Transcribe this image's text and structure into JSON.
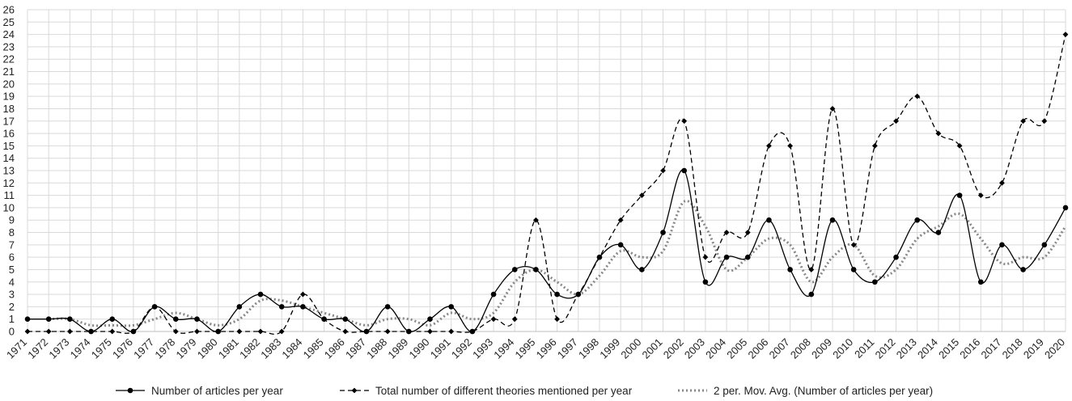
{
  "chart_data": {
    "type": "line",
    "x": [
      "1971",
      "1972",
      "1973",
      "1974",
      "1975",
      "1976",
      "1977",
      "1978",
      "1979",
      "1980",
      "1981",
      "1982",
      "1983",
      "1984",
      "1985",
      "1986",
      "1987",
      "1988",
      "1989",
      "1990",
      "1991",
      "1992",
      "1993",
      "1994",
      "1995",
      "1996",
      "1997",
      "1998",
      "1999",
      "2000",
      "2001",
      "2002",
      "2003",
      "2004",
      "2005",
      "2006",
      "2007",
      "2008",
      "2009",
      "2010",
      "2011",
      "2012",
      "2013",
      "2014",
      "2015",
      "2016",
      "2017",
      "2018",
      "2019",
      "2020"
    ],
    "ylim": [
      0,
      26
    ],
    "y_ticks": [
      "0",
      "1",
      "2",
      "3",
      "4",
      "5",
      "6",
      "7",
      "8",
      "9",
      "10",
      "11",
      "12",
      "13",
      "14",
      "15",
      "16",
      "17",
      "18",
      "19",
      "20",
      "21",
      "22",
      "23",
      "24",
      "25",
      "26"
    ],
    "grid": true,
    "legend_position": "bottom",
    "series": [
      {
        "name": "Number of articles per year",
        "style": "solid",
        "marker": "circle",
        "color": "#000000",
        "values": [
          1,
          1,
          1,
          0,
          1,
          0,
          2,
          1,
          1,
          0,
          2,
          3,
          2,
          2,
          1,
          1,
          0,
          2,
          0,
          1,
          2,
          0,
          3,
          5,
          5,
          3,
          3,
          6,
          7,
          5,
          8,
          13,
          4,
          6,
          6,
          9,
          5,
          3,
          9,
          5,
          4,
          6,
          9,
          8,
          11,
          4,
          7,
          5,
          7,
          10
        ]
      },
      {
        "name": "Total number of different theories mentioned per year",
        "style": "dashed",
        "marker": "diamond",
        "color": "#000000",
        "values": [
          0,
          0,
          0,
          0,
          0,
          0,
          2,
          0,
          0,
          0,
          0,
          0,
          0,
          3,
          1,
          0,
          0,
          0,
          0,
          0,
          0,
          0,
          1,
          1,
          9,
          1,
          3,
          6,
          9,
          11,
          13,
          17,
          6,
          8,
          8,
          15,
          15,
          5,
          18,
          7,
          15,
          17,
          19,
          16,
          15,
          11,
          12,
          17,
          17,
          24
        ]
      },
      {
        "name": "2 per. Mov. Avg. (Number of articles per year)",
        "style": "dotted",
        "marker": "none",
        "color": "#888888",
        "values": [
          null,
          1,
          1,
          0.5,
          0.5,
          0.5,
          1,
          1.5,
          1,
          0.5,
          1,
          2.5,
          2.5,
          2,
          1.5,
          1,
          0.5,
          1,
          1,
          0.5,
          1.5,
          1,
          1.5,
          4,
          5,
          4,
          3,
          4.5,
          6.5,
          6,
          6.5,
          10.5,
          8.5,
          5,
          6,
          7.5,
          7,
          4,
          6,
          7,
          4.5,
          5,
          7.5,
          8.5,
          9.5,
          7.5,
          5.5,
          6,
          6,
          8.5
        ]
      }
    ]
  }
}
